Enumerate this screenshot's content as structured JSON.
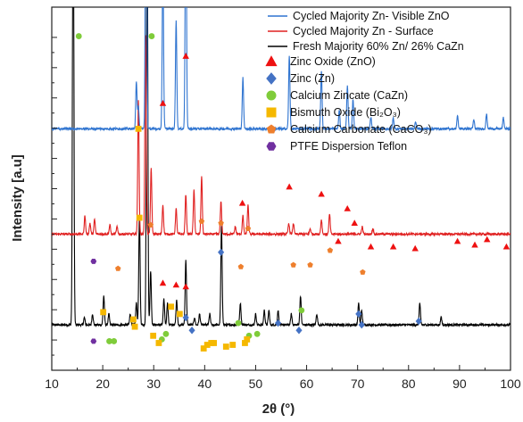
{
  "chart_data": {
    "type": "line",
    "title": "",
    "xlabel": "2θ (°)",
    "ylabel": "Intensity [a.u]",
    "xlim": [
      10,
      100
    ],
    "x_ticks": [
      10,
      20,
      30,
      40,
      50,
      60,
      70,
      80,
      90,
      100
    ],
    "y_tick_labels": false,
    "grid": false,
    "legend_position": "top-right",
    "series": [
      {
        "name": "Cycled Majority Zn- Visible ZnO",
        "color": "#2f74d0",
        "baseline": 0.665,
        "peaks": [
          [
            26.6,
            0.13
          ],
          [
            27.0,
            0.06
          ],
          [
            28.5,
            1.1
          ],
          [
            31.8,
            0.46
          ],
          [
            34.4,
            0.3
          ],
          [
            36.3,
            0.68
          ],
          [
            47.5,
            0.14
          ],
          [
            56.6,
            0.2
          ],
          [
            62.9,
            0.16
          ],
          [
            66.4,
            0.05
          ],
          [
            68.0,
            0.12
          ],
          [
            69.1,
            0.08
          ],
          [
            72.6,
            0.03
          ],
          [
            77.0,
            0.03
          ],
          [
            81.4,
            0.02
          ],
          [
            89.6,
            0.035
          ],
          [
            92.8,
            0.025
          ],
          [
            95.3,
            0.04
          ],
          [
            98.6,
            0.03
          ]
        ]
      },
      {
        "name": "Cycled Majority Zn - Surface",
        "color": "#e02020",
        "baseline": 0.375,
        "peaks": [
          [
            16.5,
            0.05
          ],
          [
            17.5,
            0.03
          ],
          [
            18.4,
            0.04
          ],
          [
            21.4,
            0.025
          ],
          [
            22.8,
            0.02
          ],
          [
            27.0,
            0.37
          ],
          [
            28.4,
            0.55
          ],
          [
            29.5,
            0.18
          ],
          [
            31.8,
            0.08
          ],
          [
            34.4,
            0.07
          ],
          [
            36.3,
            0.11
          ],
          [
            37.9,
            0.12
          ],
          [
            39.4,
            0.16
          ],
          [
            43.2,
            0.09
          ],
          [
            46.0,
            0.02
          ],
          [
            47.5,
            0.05
          ],
          [
            48.5,
            0.08
          ],
          [
            56.5,
            0.03
          ],
          [
            57.4,
            0.03
          ],
          [
            60.7,
            0.015
          ],
          [
            62.9,
            0.04
          ],
          [
            64.5,
            0.055
          ],
          [
            70.9,
            0.02
          ],
          [
            73.0,
            0.015
          ]
        ]
      },
      {
        "name": "Fresh Majority 60% Zn/ 26% CaZn",
        "color": "#000000",
        "baseline": 0.125,
        "peaks": [
          [
            14.2,
            1.4
          ],
          [
            16.4,
            0.02
          ],
          [
            18.0,
            0.03
          ],
          [
            20.2,
            0.08
          ],
          [
            21.2,
            0.03
          ],
          [
            25.4,
            0.03
          ],
          [
            26.6,
            0.06
          ],
          [
            27.2,
            0.3
          ],
          [
            28.7,
            1.35
          ],
          [
            29.4,
            0.15
          ],
          [
            32.0,
            0.07
          ],
          [
            32.7,
            0.06
          ],
          [
            34.5,
            0.07
          ],
          [
            36.3,
            0.18
          ],
          [
            38.0,
            0.02
          ],
          [
            39.0,
            0.03
          ],
          [
            41.0,
            0.03
          ],
          [
            43.3,
            0.27
          ],
          [
            47.0,
            0.06
          ],
          [
            50.0,
            0.03
          ],
          [
            51.7,
            0.04
          ],
          [
            52.6,
            0.04
          ],
          [
            54.4,
            0.04
          ],
          [
            57.0,
            0.03
          ],
          [
            58.8,
            0.08
          ],
          [
            62.0,
            0.03
          ],
          [
            70.2,
            0.06
          ],
          [
            70.8,
            0.04
          ],
          [
            82.2,
            0.06
          ],
          [
            86.4,
            0.02
          ]
        ]
      }
    ],
    "annotation_markers": [
      {
        "legend_label": "Zinc Oxide (ZnO)",
        "shape": "triangle",
        "color": "#ee1111",
        "points": [
          [
            36.3,
            0.865
          ],
          [
            31.8,
            0.735
          ],
          [
            47.4,
            0.46
          ],
          [
            56.6,
            0.505
          ],
          [
            62.9,
            0.485
          ],
          [
            68.0,
            0.445
          ],
          [
            69.4,
            0.405
          ],
          [
            66.2,
            0.355
          ],
          [
            72.6,
            0.34
          ],
          [
            77.0,
            0.34
          ],
          [
            81.3,
            0.335
          ],
          [
            89.6,
            0.355
          ],
          [
            93.0,
            0.345
          ],
          [
            95.4,
            0.36
          ],
          [
            99.2,
            0.34
          ],
          [
            31.8,
            0.24
          ],
          [
            34.4,
            0.235
          ],
          [
            36.3,
            0.23
          ]
        ]
      },
      {
        "legend_label": "Zinc (Zn)",
        "shape": "diamond",
        "color": "#4472c4",
        "points": [
          [
            43.2,
            0.325
          ],
          [
            36.3,
            0.145
          ],
          [
            37.5,
            0.11
          ],
          [
            54.4,
            0.13
          ],
          [
            58.5,
            0.11
          ],
          [
            70.2,
            0.155
          ],
          [
            70.8,
            0.125
          ],
          [
            82.0,
            0.135
          ]
        ]
      },
      {
        "legend_label": "Calcium Zincate (CaZn)",
        "shape": "circle",
        "color": "#7fcc3a",
        "points": [
          [
            15.3,
            0.92
          ],
          [
            29.6,
            0.92
          ],
          [
            21.3,
            0.08
          ],
          [
            22.2,
            0.08
          ],
          [
            31.6,
            0.085
          ],
          [
            32.4,
            0.1
          ],
          [
            46.6,
            0.13
          ],
          [
            48.7,
            0.095
          ],
          [
            50.3,
            0.1
          ],
          [
            59.0,
            0.165
          ]
        ]
      },
      {
        "legend_label": "Bismuth Oxide (Bi₂O₃)",
        "shape": "square",
        "color": "#f5b800",
        "points": [
          [
            27.0,
            0.665
          ],
          [
            27.2,
            0.42
          ],
          [
            26.0,
            0.14
          ],
          [
            20.1,
            0.16
          ],
          [
            26.3,
            0.12
          ],
          [
            33.4,
            0.175
          ],
          [
            35.1,
            0.155
          ],
          [
            29.9,
            0.095
          ],
          [
            31.0,
            0.075
          ],
          [
            39.8,
            0.06
          ],
          [
            41.8,
            0.075
          ],
          [
            44.2,
            0.065
          ],
          [
            45.5,
            0.07
          ],
          [
            47.9,
            0.075
          ],
          [
            48.3,
            0.085
          ],
          [
            40.5,
            0.07
          ],
          [
            41.3,
            0.075
          ]
        ]
      },
      {
        "legend_label": "Calcium Carbonate (CaCO₃)",
        "shape": "pentagon",
        "color": "#ee7f2d",
        "points": [
          [
            23.0,
            0.28
          ],
          [
            29.4,
            0.4
          ],
          [
            39.4,
            0.41
          ],
          [
            43.2,
            0.405
          ],
          [
            48.5,
            0.39
          ],
          [
            47.1,
            0.285
          ],
          [
            57.4,
            0.29
          ],
          [
            60.7,
            0.29
          ],
          [
            64.6,
            0.33
          ],
          [
            71.0,
            0.27
          ]
        ]
      },
      {
        "legend_label": "PTFE Dispersion Teflon",
        "shape": "hexagon",
        "color": "#7030a0",
        "points": [
          [
            18.2,
            0.3
          ],
          [
            18.2,
            0.08
          ]
        ]
      }
    ]
  }
}
